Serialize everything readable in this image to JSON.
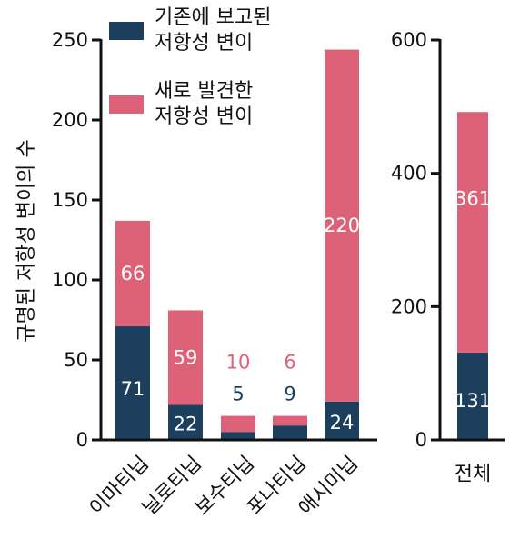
{
  "colors": {
    "known": "#1b3f5c",
    "new": "#de6277",
    "axis": "#111111",
    "label_inside": "#ffffff"
  },
  "legend": {
    "known_line1": "기존에 보고된",
    "known_line2": "저항성 변이",
    "new_line1": "새로 발견한",
    "new_line2": "저항성 변이"
  },
  "chart_data": [
    {
      "type": "bar",
      "stacked": true,
      "title": "",
      "xlabel": "",
      "ylabel": "규명된 저항성 변이의 수",
      "ylim": [
        0,
        250
      ],
      "yticks": [
        0,
        50,
        100,
        150,
        200,
        250
      ],
      "categories": [
        "이마티닙",
        "닐로티닙",
        "보수티닙",
        "포나티닙",
        "애시미닙"
      ],
      "series": [
        {
          "name": "기존에 보고된 저항성 변이",
          "values": [
            71,
            22,
            5,
            9,
            24
          ]
        },
        {
          "name": "새로 발견한 저항성 변이",
          "values": [
            66,
            59,
            10,
            6,
            220
          ]
        }
      ],
      "legend_position": "top-left"
    },
    {
      "type": "bar",
      "stacked": true,
      "title": "",
      "xlabel": "",
      "ylabel": "",
      "ylim": [
        0,
        600
      ],
      "yticks": [
        0,
        200,
        400,
        600
      ],
      "categories": [
        "전체"
      ],
      "series": [
        {
          "name": "기존에 보고된 저항성 변이",
          "values": [
            131
          ]
        },
        {
          "name": "새로 발견한 저항성 변이",
          "values": [
            361
          ]
        }
      ]
    }
  ]
}
